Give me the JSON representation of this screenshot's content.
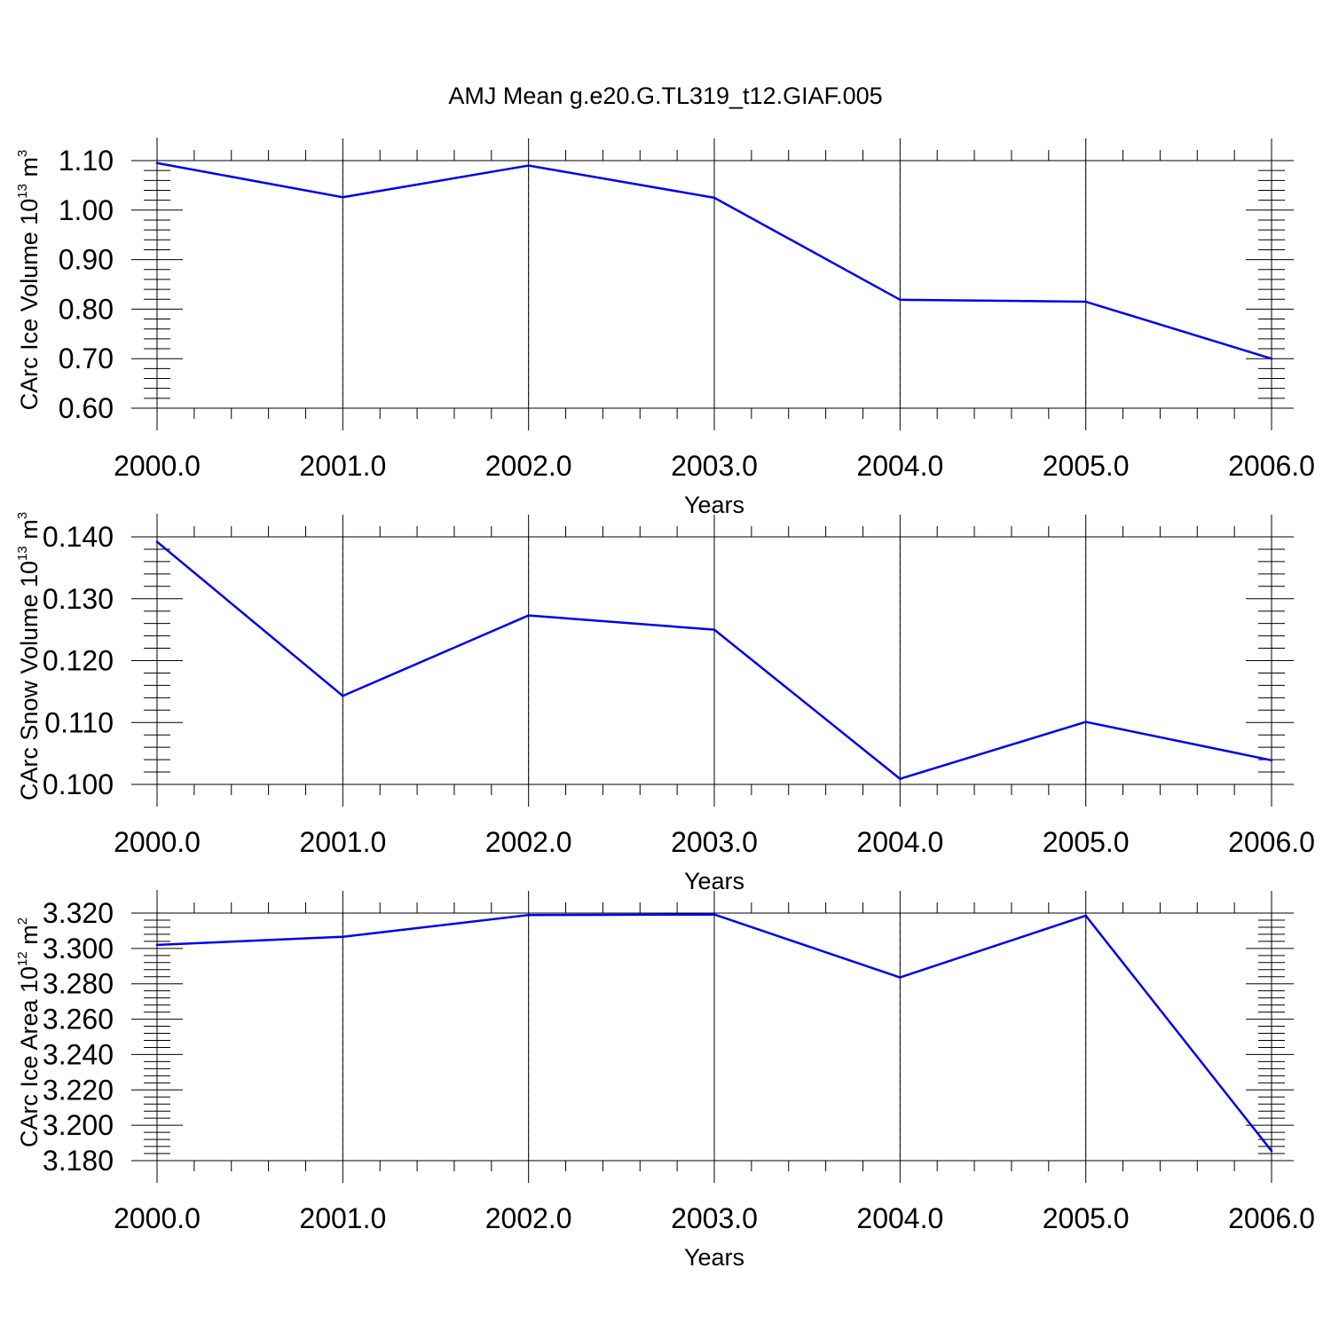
{
  "title": "AMJ Mean g.e20.G.TL319_t12.GIAF.005",
  "chart_data": [
    {
      "type": "line",
      "xlabel": "Years",
      "ylabel": {
        "prefix": "CArc Ice Volume 10",
        "exp": "13",
        "unit": " m",
        "unit_exp": "3"
      },
      "x": [
        2000,
        2001,
        2002,
        2003,
        2004,
        2005,
        2006
      ],
      "values": [
        1.095,
        1.026,
        1.09,
        1.025,
        0.819,
        0.815,
        0.7
      ],
      "ylim": [
        0.6,
        1.1
      ],
      "yticks": [
        0.6,
        0.7,
        0.8,
        0.9,
        1.0,
        1.1
      ],
      "ytick_labels": [
        "0.60",
        "0.70",
        "0.80",
        "0.90",
        "1.00",
        "1.10"
      ],
      "xlim": [
        2000,
        2006
      ],
      "xtick_labels": [
        "2000.0",
        "2001.0",
        "2002.0",
        "2003.0",
        "2004.0",
        "2005.0",
        "2006.0"
      ],
      "line_color": "#0000ee",
      "grid": "vertical dashed"
    },
    {
      "type": "line",
      "xlabel": "Years",
      "ylabel": {
        "prefix": "CArc Snow Volume 10",
        "exp": "13",
        "unit": " m",
        "unit_exp": "3"
      },
      "x": [
        2000,
        2001,
        2002,
        2003,
        2004,
        2005,
        2006
      ],
      "values": [
        0.1392,
        0.1143,
        0.1273,
        0.125,
        0.1009,
        0.1101,
        0.1039
      ],
      "ylim": [
        0.1,
        0.14
      ],
      "yticks": [
        0.1,
        0.11,
        0.12,
        0.13,
        0.14
      ],
      "ytick_labels": [
        "0.100",
        "0.110",
        "0.120",
        "0.130",
        "0.140"
      ],
      "xlim": [
        2000,
        2006
      ],
      "xtick_labels": [
        "2000.0",
        "2001.0",
        "2002.0",
        "2003.0",
        "2004.0",
        "2005.0",
        "2006.0"
      ],
      "line_color": "#0000ee",
      "grid": "vertical dashed"
    },
    {
      "type": "line",
      "xlabel": "Years",
      "ylabel": {
        "prefix": "CArc Ice Area 10",
        "exp": "12",
        "unit": " m",
        "unit_exp": "2"
      },
      "x": [
        2000,
        2001,
        2002,
        2003,
        2004,
        2005,
        2006
      ],
      "values": [
        3.302,
        3.3066,
        3.3189,
        3.3192,
        3.2836,
        3.3185,
        3.1855
      ],
      "ylim": [
        3.18,
        3.32
      ],
      "yticks": [
        3.18,
        3.2,
        3.22,
        3.24,
        3.26,
        3.28,
        3.3,
        3.32
      ],
      "ytick_labels": [
        "3.180",
        "3.200",
        "3.220",
        "3.240",
        "3.260",
        "3.280",
        "3.300",
        "3.320"
      ],
      "xlim": [
        2000,
        2006
      ],
      "xtick_labels": [
        "2000.0",
        "2001.0",
        "2002.0",
        "2003.0",
        "2004.0",
        "2005.0",
        "2006.0"
      ],
      "line_color": "#0000ee",
      "grid": "vertical dashed"
    }
  ]
}
